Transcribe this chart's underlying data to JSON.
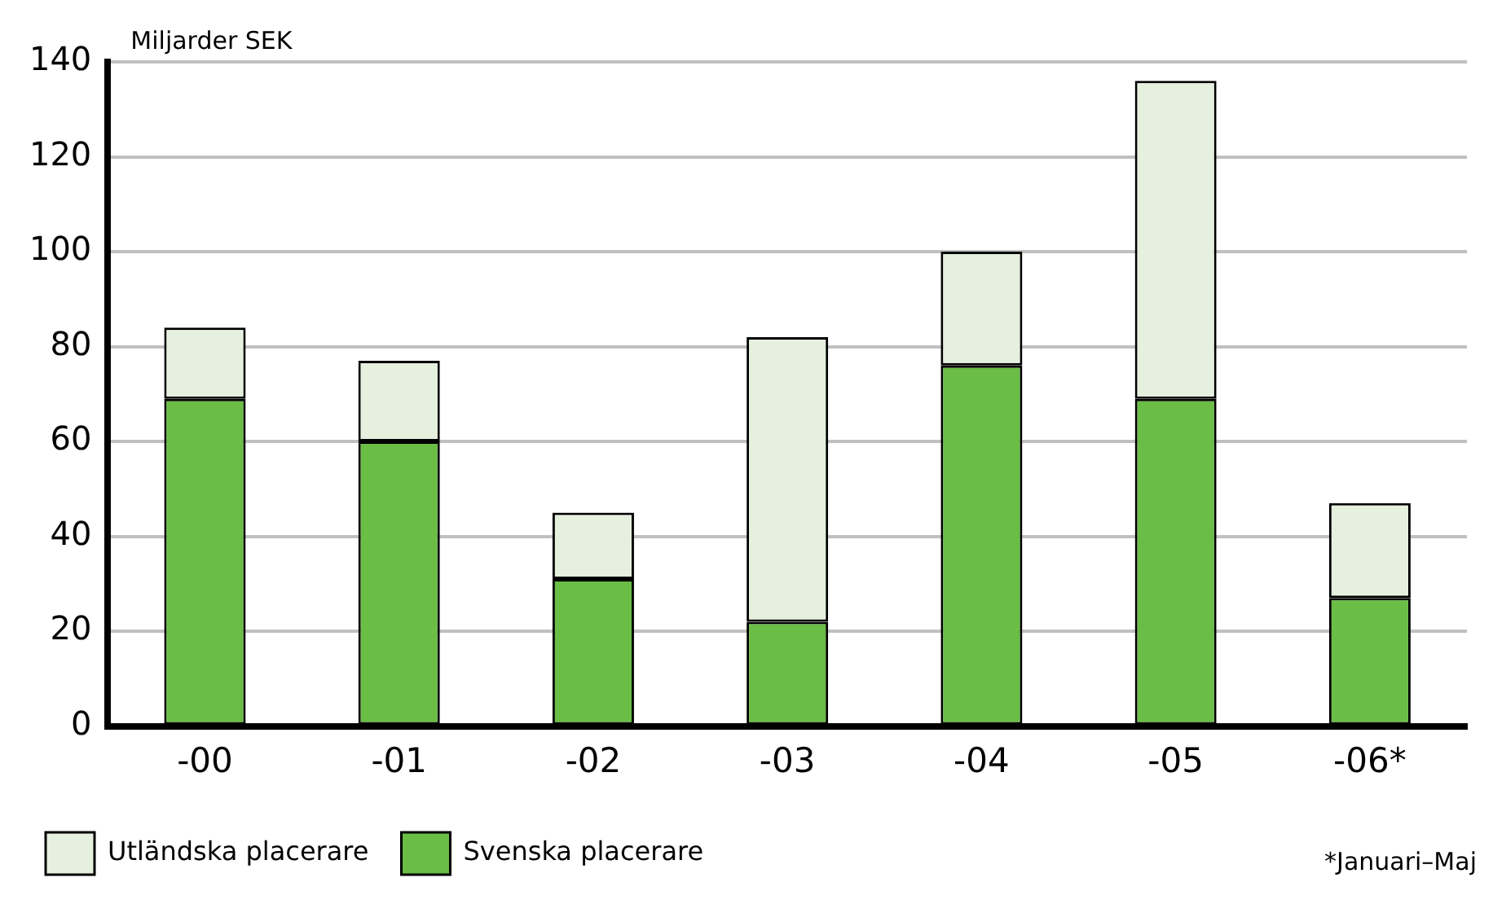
{
  "chart_data": {
    "type": "bar",
    "ylabel": "Miljarder SEK",
    "categories": [
      "-00",
      "-01",
      "-02",
      "-03",
      "-04",
      "-05",
      "-06*"
    ],
    "series": [
      {
        "name": "Svenska placerare",
        "color": "#6abd45",
        "values": [
          69,
          60,
          31,
          22,
          76,
          69,
          27
        ]
      },
      {
        "name": "Utländska placerare",
        "color": "#e5f0de",
        "values": [
          15,
          17,
          14,
          60,
          24,
          67,
          20
        ]
      }
    ],
    "stacked": true,
    "ylim": [
      0,
      140
    ],
    "yticks": [
      0,
      20,
      40,
      60,
      80,
      100,
      120,
      140
    ],
    "grid": "y",
    "legend": "bottom",
    "annotations": [
      "*Januari–Maj"
    ]
  }
}
